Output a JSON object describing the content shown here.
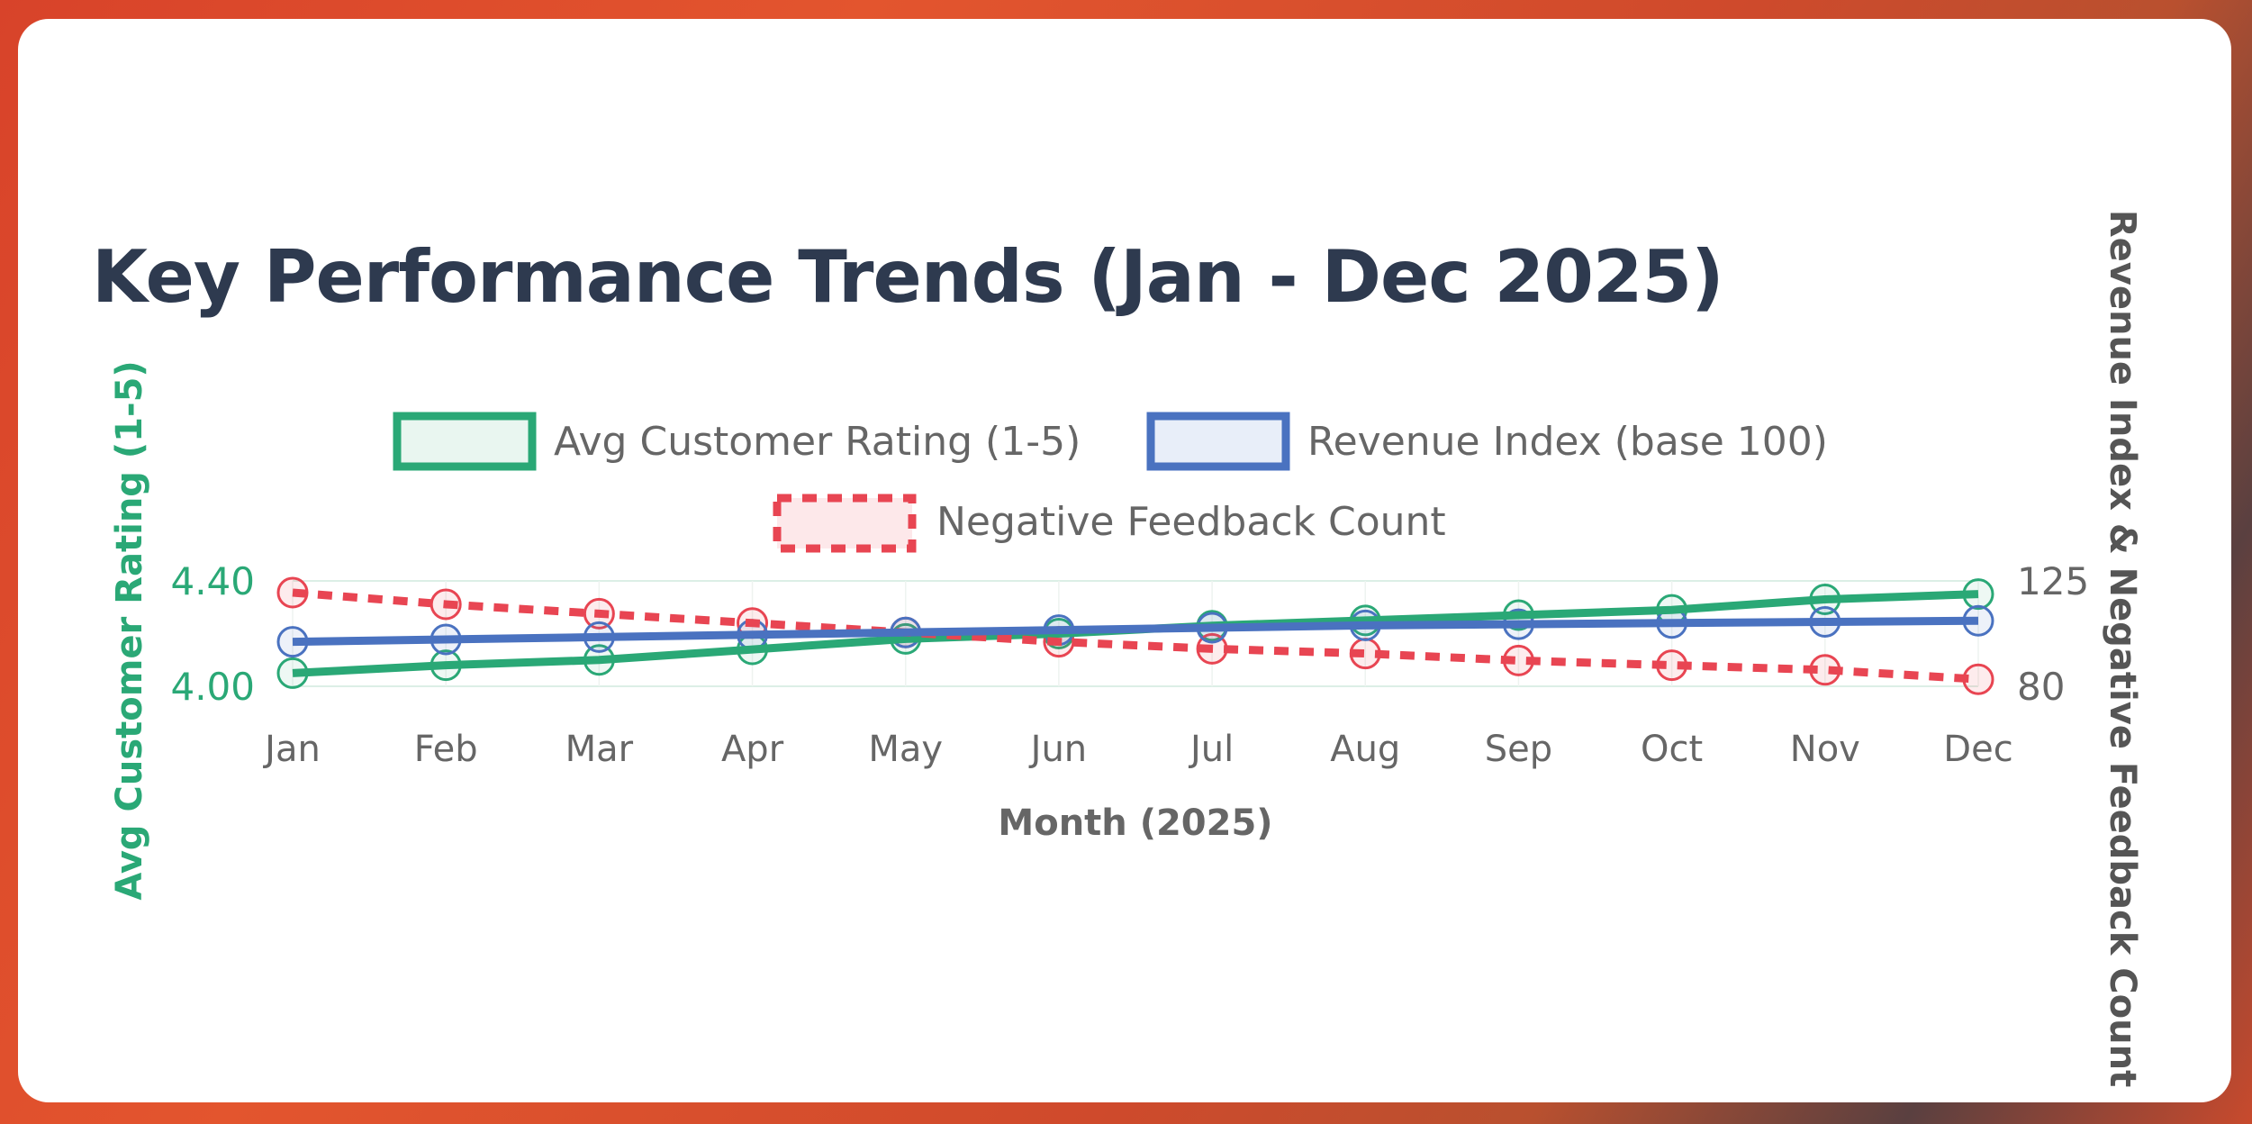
{
  "page": {
    "title": "Key Performance Trends (Jan - Dec 2025)"
  },
  "chart_data": {
    "type": "line",
    "title": "Key Performance Trends (Jan - Dec 2025)",
    "xlabel": "Month (2025)",
    "ylabel_left": "Avg Customer Rating (1-5)",
    "ylabel_right": "Revenue Index & Negative Feedback Count",
    "categories": [
      "Jan",
      "Feb",
      "Mar",
      "Apr",
      "May",
      "Jun",
      "Jul",
      "Aug",
      "Sep",
      "Oct",
      "Nov",
      "Dec"
    ],
    "y_left": {
      "min": 4.0,
      "max": 4.4,
      "ticks": [
        "4.00",
        "4.40"
      ]
    },
    "y_right": {
      "min": 80,
      "max": 125,
      "ticks": [
        "80",
        "125"
      ]
    },
    "series": [
      {
        "name": "Avg Customer Rating (1-5)",
        "axis": "left",
        "color": "#2aa876",
        "dashed": false,
        "values": [
          4.05,
          4.08,
          4.1,
          4.14,
          4.18,
          4.2,
          4.23,
          4.25,
          4.27,
          4.29,
          4.33,
          4.35
        ]
      },
      {
        "name": "Revenue Index (base 100)",
        "axis": "right",
        "color": "#4a72c0",
        "dashed": false,
        "values": [
          99,
          100,
          101,
          102,
          103,
          104,
          105,
          106,
          106.5,
          107,
          107.5,
          108
        ]
      },
      {
        "name": "Negative Feedback Count",
        "axis": "right",
        "color": "#e84552",
        "dashed": true,
        "values": [
          120,
          115,
          111,
          107,
          103,
          99,
          96,
          94,
          91,
          89,
          87,
          83
        ]
      }
    ],
    "grid": true,
    "legend_position": "top-center"
  }
}
